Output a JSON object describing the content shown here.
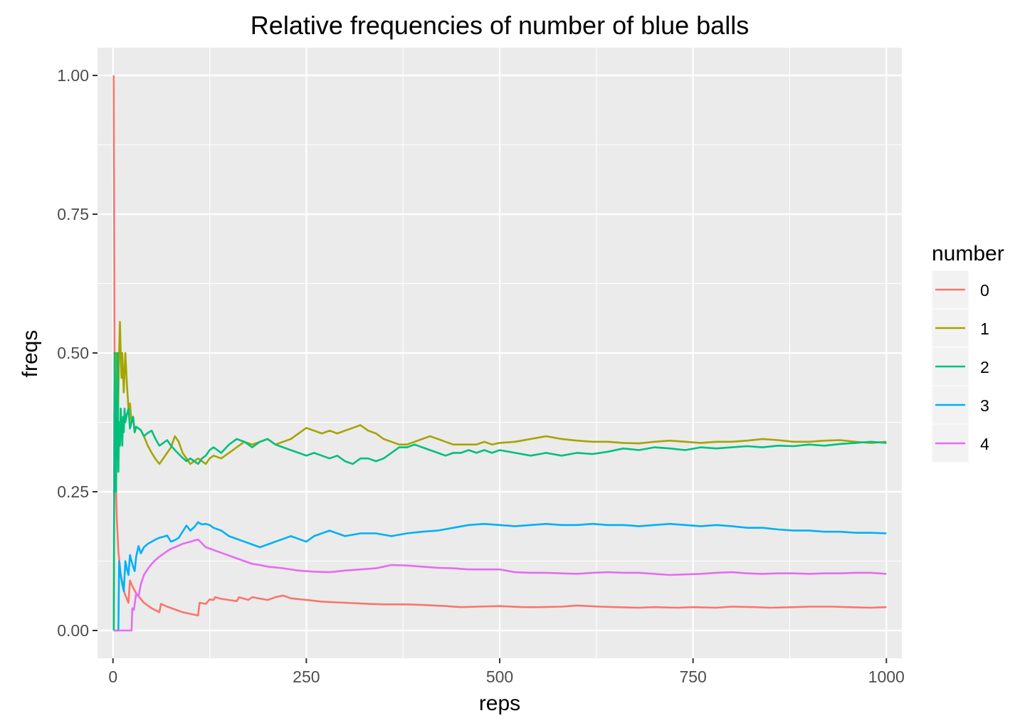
{
  "chart_data": {
    "type": "line",
    "title": "Relative frequencies of number of blue balls",
    "xlabel": "reps",
    "ylabel": "freqs",
    "xlim": [
      -20,
      1020
    ],
    "ylim": [
      -0.05,
      1.05
    ],
    "x_ticks": [
      0,
      250,
      500,
      750,
      1000
    ],
    "x_tick_labels": [
      "0",
      "250",
      "500",
      "750",
      "1000"
    ],
    "y_ticks": [
      0,
      0.25,
      0.5,
      0.75,
      1.0
    ],
    "y_tick_labels": [
      "0.00",
      "0.25",
      "0.50",
      "0.75",
      "1.00"
    ],
    "grid": true,
    "legend": {
      "title": "number",
      "position": "right"
    },
    "series": [
      {
        "name": "0",
        "color": "#F8766D",
        "x": [
          1,
          2,
          3,
          4,
          5,
          7,
          10,
          15,
          20,
          22,
          25,
          30,
          40,
          50,
          60,
          62,
          70,
          80,
          90,
          100,
          110,
          112,
          120,
          125,
          130,
          132,
          140,
          150,
          160,
          163,
          175,
          180,
          200,
          210,
          220,
          230,
          250,
          270,
          300,
          330,
          350,
          380,
          400,
          430,
          450,
          470,
          500,
          530,
          550,
          580,
          600,
          630,
          650,
          680,
          700,
          730,
          750,
          780,
          800,
          830,
          850,
          880,
          900,
          930,
          950,
          980,
          1000
        ],
        "y": [
          1.0,
          0.5,
          0.333,
          0.25,
          0.2,
          0.143,
          0.1,
          0.067,
          0.05,
          0.09,
          0.08,
          0.067,
          0.05,
          0.04,
          0.033,
          0.048,
          0.043,
          0.038,
          0.033,
          0.03,
          0.027,
          0.05,
          0.048,
          0.056,
          0.055,
          0.06,
          0.057,
          0.055,
          0.053,
          0.06,
          0.055,
          0.06,
          0.055,
          0.06,
          0.063,
          0.058,
          0.055,
          0.052,
          0.05,
          0.048,
          0.047,
          0.047,
          0.046,
          0.044,
          0.042,
          0.043,
          0.044,
          0.042,
          0.042,
          0.043,
          0.045,
          0.043,
          0.042,
          0.041,
          0.042,
          0.041,
          0.042,
          0.041,
          0.043,
          0.042,
          0.041,
          0.042,
          0.043,
          0.043,
          0.042,
          0.041,
          0.042
        ]
      },
      {
        "name": "1",
        "color": "#A3A500",
        "x": [
          1,
          2,
          3,
          4,
          5,
          6,
          7,
          8,
          9,
          10,
          11,
          12,
          13,
          14,
          15,
          16,
          18,
          20,
          22,
          24,
          26,
          28,
          30,
          33,
          36,
          40,
          45,
          50,
          55,
          60,
          65,
          70,
          75,
          80,
          85,
          90,
          95,
          100,
          105,
          110,
          115,
          120,
          125,
          130,
          140,
          150,
          160,
          170,
          180,
          190,
          200,
          210,
          220,
          230,
          240,
          250,
          260,
          270,
          280,
          290,
          300,
          310,
          320,
          330,
          340,
          350,
          360,
          370,
          380,
          390,
          400,
          410,
          420,
          430,
          440,
          450,
          460,
          470,
          480,
          490,
          500,
          520,
          540,
          560,
          580,
          600,
          620,
          640,
          660,
          680,
          700,
          720,
          740,
          760,
          780,
          800,
          820,
          840,
          860,
          880,
          900,
          920,
          940,
          960,
          980,
          1000
        ],
        "y": [
          0.0,
          0.5,
          0.333,
          0.5,
          0.4,
          0.333,
          0.429,
          0.5,
          0.556,
          0.5,
          0.455,
          0.5,
          0.462,
          0.429,
          0.467,
          0.5,
          0.444,
          0.4,
          0.409,
          0.375,
          0.385,
          0.357,
          0.367,
          0.364,
          0.361,
          0.35,
          0.333,
          0.32,
          0.309,
          0.3,
          0.31,
          0.32,
          0.33,
          0.35,
          0.34,
          0.32,
          0.31,
          0.3,
          0.305,
          0.31,
          0.305,
          0.3,
          0.31,
          0.315,
          0.31,
          0.32,
          0.33,
          0.34,
          0.335,
          0.34,
          0.345,
          0.335,
          0.34,
          0.345,
          0.355,
          0.365,
          0.36,
          0.355,
          0.36,
          0.355,
          0.36,
          0.365,
          0.37,
          0.36,
          0.355,
          0.345,
          0.34,
          0.335,
          0.335,
          0.34,
          0.345,
          0.35,
          0.345,
          0.34,
          0.335,
          0.335,
          0.335,
          0.335,
          0.34,
          0.335,
          0.338,
          0.34,
          0.345,
          0.35,
          0.345,
          0.342,
          0.34,
          0.34,
          0.338,
          0.337,
          0.34,
          0.342,
          0.34,
          0.338,
          0.34,
          0.34,
          0.342,
          0.345,
          0.343,
          0.34,
          0.34,
          0.342,
          0.343,
          0.34,
          0.338,
          0.34
        ]
      },
      {
        "name": "2",
        "color": "#00BF7D",
        "x": [
          1,
          2,
          3,
          4,
          5,
          6,
          7,
          8,
          9,
          10,
          11,
          12,
          13,
          14,
          15,
          16,
          18,
          20,
          22,
          24,
          26,
          28,
          30,
          33,
          36,
          40,
          45,
          50,
          55,
          60,
          65,
          70,
          75,
          80,
          85,
          90,
          95,
          100,
          105,
          110,
          115,
          120,
          125,
          130,
          140,
          150,
          160,
          170,
          180,
          190,
          200,
          210,
          220,
          230,
          240,
          250,
          260,
          270,
          280,
          290,
          300,
          310,
          320,
          330,
          340,
          350,
          360,
          370,
          380,
          390,
          400,
          410,
          420,
          430,
          440,
          450,
          460,
          470,
          480,
          490,
          500,
          520,
          540,
          560,
          580,
          600,
          620,
          640,
          660,
          680,
          700,
          720,
          740,
          760,
          780,
          800,
          820,
          840,
          860,
          880,
          900,
          920,
          940,
          960,
          980,
          1000
        ],
        "y": [
          0.0,
          0.5,
          0.333,
          0.25,
          0.4,
          0.5,
          0.286,
          0.375,
          0.333,
          0.4,
          0.364,
          0.333,
          0.385,
          0.357,
          0.4,
          0.375,
          0.389,
          0.4,
          0.364,
          0.375,
          0.385,
          0.357,
          0.367,
          0.364,
          0.361,
          0.35,
          0.356,
          0.36,
          0.345,
          0.333,
          0.338,
          0.343,
          0.333,
          0.325,
          0.318,
          0.311,
          0.305,
          0.31,
          0.305,
          0.3,
          0.31,
          0.315,
          0.325,
          0.33,
          0.32,
          0.335,
          0.345,
          0.34,
          0.33,
          0.34,
          0.345,
          0.335,
          0.33,
          0.325,
          0.32,
          0.315,
          0.32,
          0.315,
          0.31,
          0.315,
          0.305,
          0.3,
          0.31,
          0.31,
          0.305,
          0.31,
          0.32,
          0.33,
          0.33,
          0.335,
          0.33,
          0.325,
          0.32,
          0.315,
          0.32,
          0.32,
          0.325,
          0.32,
          0.325,
          0.32,
          0.325,
          0.32,
          0.315,
          0.32,
          0.315,
          0.32,
          0.318,
          0.322,
          0.328,
          0.325,
          0.33,
          0.328,
          0.325,
          0.33,
          0.328,
          0.33,
          0.332,
          0.33,
          0.333,
          0.332,
          0.335,
          0.333,
          0.336,
          0.338,
          0.34,
          0.338
        ]
      },
      {
        "name": "3",
        "color": "#00B0F6",
        "x": [
          1,
          5,
          6,
          7,
          8,
          10,
          12,
          14,
          16,
          18,
          20,
          22,
          24,
          26,
          28,
          30,
          33,
          36,
          40,
          45,
          50,
          55,
          60,
          65,
          70,
          75,
          80,
          85,
          90,
          95,
          100,
          105,
          110,
          115,
          120,
          125,
          130,
          140,
          150,
          160,
          170,
          180,
          190,
          200,
          210,
          220,
          230,
          240,
          250,
          260,
          270,
          280,
          290,
          300,
          320,
          340,
          360,
          380,
          400,
          420,
          440,
          460,
          480,
          500,
          520,
          540,
          560,
          580,
          600,
          620,
          640,
          660,
          680,
          700,
          720,
          740,
          760,
          780,
          800,
          820,
          840,
          860,
          880,
          900,
          920,
          940,
          960,
          980,
          1000
        ],
        "y": [
          0.0,
          0.0,
          0.0,
          0.0,
          0.125,
          0.1,
          0.083,
          0.071,
          0.125,
          0.111,
          0.1,
          0.136,
          0.125,
          0.115,
          0.107,
          0.133,
          0.152,
          0.139,
          0.15,
          0.156,
          0.16,
          0.164,
          0.167,
          0.169,
          0.171,
          0.16,
          0.163,
          0.167,
          0.178,
          0.189,
          0.18,
          0.186,
          0.195,
          0.191,
          0.192,
          0.19,
          0.185,
          0.18,
          0.17,
          0.165,
          0.16,
          0.155,
          0.15,
          0.155,
          0.16,
          0.165,
          0.17,
          0.165,
          0.16,
          0.17,
          0.175,
          0.18,
          0.175,
          0.17,
          0.175,
          0.175,
          0.17,
          0.175,
          0.178,
          0.18,
          0.185,
          0.19,
          0.192,
          0.19,
          0.188,
          0.19,
          0.192,
          0.19,
          0.19,
          0.192,
          0.19,
          0.19,
          0.188,
          0.19,
          0.192,
          0.19,
          0.188,
          0.19,
          0.188,
          0.185,
          0.185,
          0.182,
          0.18,
          0.18,
          0.178,
          0.178,
          0.176,
          0.176,
          0.175
        ]
      },
      {
        "name": "4",
        "color": "#E76BF3",
        "x": [
          1,
          5,
          10,
          15,
          20,
          24,
          25,
          27,
          30,
          33,
          36,
          40,
          45,
          50,
          55,
          60,
          65,
          70,
          75,
          80,
          85,
          90,
          95,
          100,
          105,
          110,
          115,
          120,
          130,
          140,
          150,
          160,
          170,
          180,
          190,
          200,
          220,
          240,
          260,
          280,
          300,
          320,
          340,
          360,
          380,
          400,
          420,
          440,
          460,
          480,
          500,
          520,
          540,
          560,
          580,
          600,
          620,
          640,
          660,
          680,
          700,
          720,
          740,
          760,
          780,
          800,
          820,
          840,
          860,
          880,
          900,
          920,
          940,
          960,
          980,
          1000
        ],
        "y": [
          0.0,
          0.0,
          0.0,
          0.0,
          0.0,
          0.0,
          0.04,
          0.037,
          0.067,
          0.061,
          0.083,
          0.1,
          0.111,
          0.12,
          0.127,
          0.133,
          0.138,
          0.143,
          0.147,
          0.15,
          0.153,
          0.156,
          0.158,
          0.16,
          0.162,
          0.164,
          0.157,
          0.15,
          0.145,
          0.14,
          0.135,
          0.13,
          0.125,
          0.12,
          0.118,
          0.115,
          0.112,
          0.108,
          0.106,
          0.105,
          0.108,
          0.11,
          0.112,
          0.118,
          0.117,
          0.115,
          0.113,
          0.112,
          0.11,
          0.11,
          0.11,
          0.105,
          0.104,
          0.104,
          0.103,
          0.102,
          0.104,
          0.105,
          0.104,
          0.104,
          0.102,
          0.1,
          0.101,
          0.102,
          0.104,
          0.105,
          0.103,
          0.102,
          0.103,
          0.103,
          0.102,
          0.103,
          0.103,
          0.104,
          0.104,
          0.102
        ]
      }
    ]
  }
}
